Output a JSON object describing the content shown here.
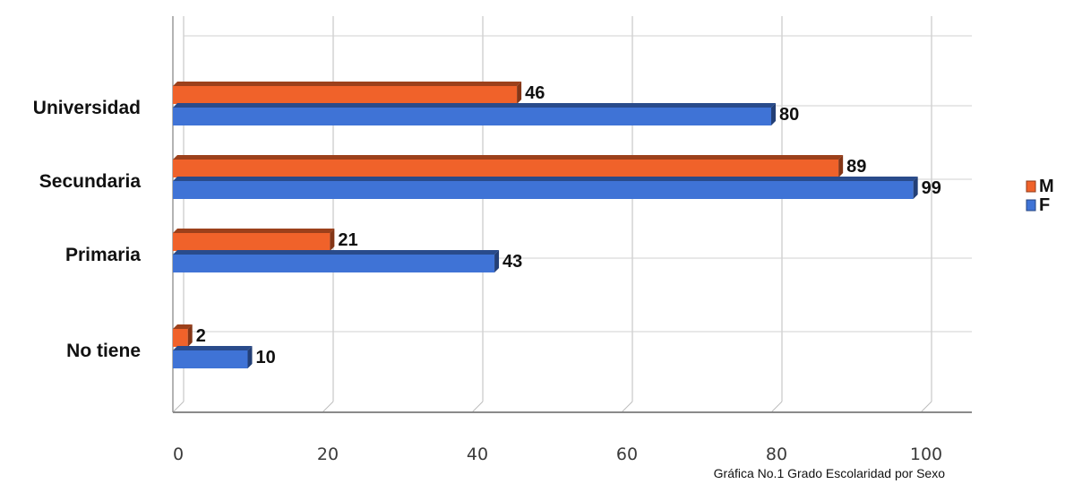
{
  "chart_data": {
    "type": "bar",
    "orientation": "horizontal",
    "categories": [
      "Universidad",
      "Secundaria",
      "Primaria",
      "No tiene"
    ],
    "series": [
      {
        "name": "M",
        "values": [
          46,
          89,
          21,
          2
        ],
        "color": "#f0622a"
      },
      {
        "name": "F",
        "values": [
          80,
          99,
          43,
          10
        ],
        "color": "#3f73d6"
      }
    ],
    "xticks": [
      "0",
      "20",
      "40",
      "60",
      "80",
      "100"
    ],
    "xlim": [
      0,
      105
    ],
    "grid": true,
    "legend": "right",
    "caption": "Gráfica No.1 Grado Escolaridad por Sexo"
  }
}
